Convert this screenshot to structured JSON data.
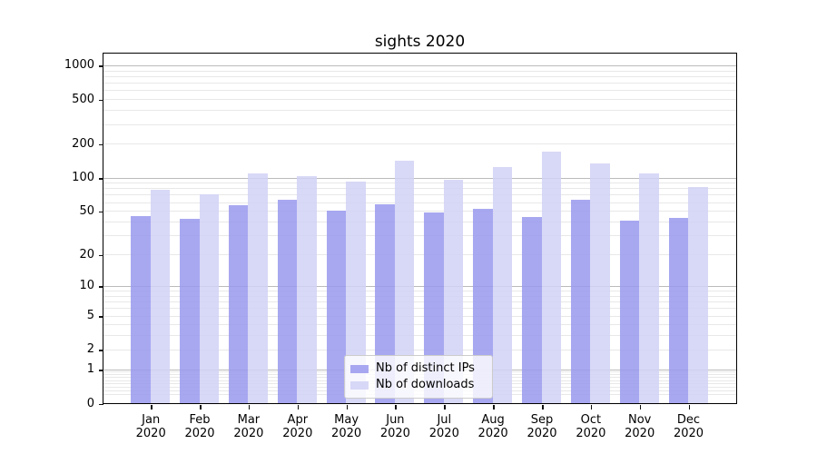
{
  "chart_data": {
    "type": "bar",
    "title": "sights 2020",
    "categories": [
      "Jan 2020",
      "Feb 2020",
      "Mar 2020",
      "Apr 2020",
      "May 2020",
      "Jun 2020",
      "Jul 2020",
      "Aug 2020",
      "Sep 2020",
      "Oct 2020",
      "Nov 2020",
      "Dec 2020"
    ],
    "months": [
      "Jan",
      "Feb",
      "Mar",
      "Apr",
      "May",
      "Jun",
      "Jul",
      "Aug",
      "Sep",
      "Oct",
      "Nov",
      "Dec"
    ],
    "year_label": "2020",
    "series": [
      {
        "name": "Nb of distinct IPs",
        "values": [
          45,
          42,
          56,
          63,
          50,
          57,
          48,
          52,
          44,
          63,
          41,
          43
        ]
      },
      {
        "name": "Nb of downloads",
        "values": [
          77,
          70,
          108,
          103,
          92,
          141,
          95,
          124,
          171,
          133,
          109,
          82
        ]
      }
    ],
    "yscale": "log10(1+y)",
    "y_ticks": [
      0,
      1,
      2,
      5,
      10,
      20,
      50,
      100,
      200,
      500,
      1000
    ],
    "ylim": [
      0,
      1272
    ],
    "grid": true,
    "legend_position": "lower-center"
  },
  "colors": {
    "bar_distinct_ips": "#9999ee",
    "bar_downloads": "#d1d1f6",
    "bar_alpha": "0.85",
    "grid_major": "#bbbbbb",
    "grid_minor": "#e8e8e8",
    "axis": "#000000",
    "legend_border": "#cccccc"
  }
}
